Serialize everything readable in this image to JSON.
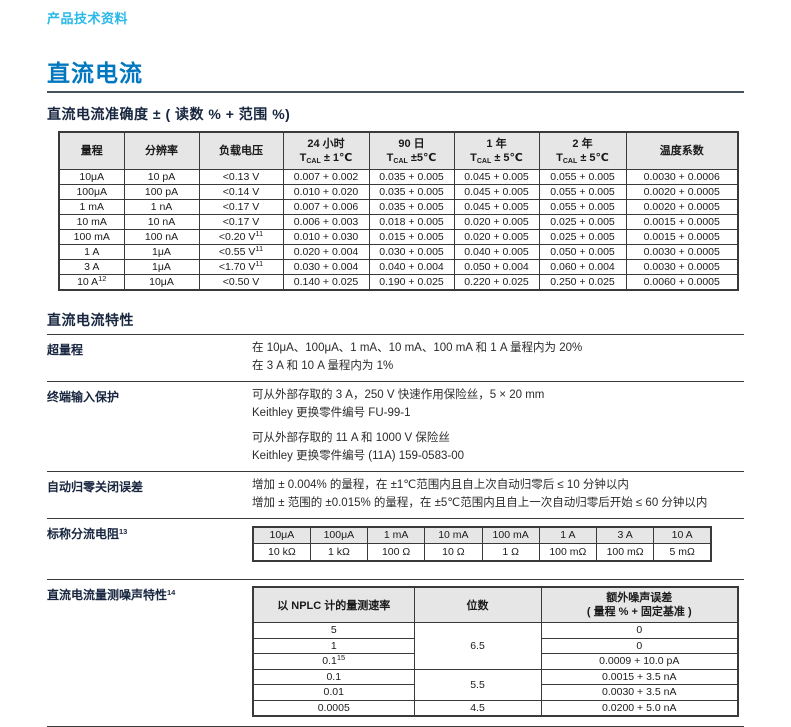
{
  "page": {
    "header_link": "产品技术资料",
    "title": "直流电流"
  },
  "accuracy": {
    "heading": "直流电流准确度 ± ( 读数 % + 范围 %)",
    "table": {
      "columns": [
        {
          "l1": "量程"
        },
        {
          "l1": "分辨率"
        },
        {
          "l1": "负载电压"
        },
        {
          "l1": "24 小时",
          "l2": "T~CAL~ ± 1℃"
        },
        {
          "l1": "90 日",
          "l2": "T~CAL~ ±5℃"
        },
        {
          "l1": "1 年",
          "l2": "T~CAL~ ± 5℃"
        },
        {
          "l1": "2 年",
          "l2": "T~CAL~ ± 5℃"
        },
        {
          "l1": "温度系数"
        }
      ],
      "rows": [
        [
          "10μA",
          "10 pA",
          "<0.13 V",
          "0.007 + 0.002",
          "0.035 + 0.005",
          "0.045 + 0.005",
          "0.055 + 0.005",
          "0.0030 + 0.0006"
        ],
        [
          "100μA",
          "100 pA",
          "<0.14 V",
          "0.010 + 0.020",
          "0.035 + 0.005",
          "0.045 + 0.005",
          "0.055 + 0.005",
          "0.0020 + 0.0005"
        ],
        [
          "1 mA",
          "1 nA",
          "<0.17 V",
          "0.007 + 0.006",
          "0.035 + 0.005",
          "0.045 + 0.005",
          "0.055 + 0.005",
          "0.0020 + 0.0005"
        ],
        [
          "10 mA",
          "10 nA",
          "<0.17 V",
          "0.006 + 0.003",
          "0.018 + 0.005",
          "0.020 + 0.005",
          "0.025 + 0.005",
          "0.0015 + 0.0005"
        ],
        [
          "100 mA",
          "100 nA",
          "<0.20 V^11^",
          "0.010 + 0.030",
          "0.015 + 0.005",
          "0.020 + 0.005",
          "0.025 + 0.005",
          "0.0015 + 0.0005"
        ],
        [
          "1 A",
          "1μA",
          "<0.55 V^11^",
          "0.020 + 0.004",
          "0.030 + 0.005",
          "0.040 + 0.005",
          "0.050 + 0.005",
          "0.0030 + 0.0005"
        ],
        [
          "3 A",
          "1μA",
          "<1.70 V^11^",
          "0.030 + 0.004",
          "0.040 + 0.004",
          "0.050 + 0.004",
          "0.060 + 0.004",
          "0.0030 + 0.0005"
        ],
        [
          "10 A^12^",
          "10μA",
          "<0.50 V",
          "0.140 + 0.025",
          "0.190 + 0.025",
          "0.220 + 0.025",
          "0.250 + 0.025",
          "0.0060 + 0.0005"
        ]
      ]
    }
  },
  "characteristics": {
    "heading": "直流电流特性",
    "overrange": {
      "label": "超量程",
      "lines": [
        "在 10μA、100μA、1 mA、10 mA、100 mA 和 1 A 量程内为 20%",
        "在 3 A 和 10 A 量程内为 1%"
      ]
    },
    "input_protection": {
      "label": "终端输入保护",
      "groups": [
        [
          "可从外部存取的 3 A，250 V 快速作用保险丝，5 × 20 mm",
          "Keithley 更换零件编号 FU-99-1"
        ],
        [
          "可从外部存取的 11 A 和 1000 V 保险丝",
          "Keithley 更换零件编号 (11A) 159-0583-00"
        ]
      ]
    },
    "autozero": {
      "label": "自动归零关闭误差",
      "lines": [
        "增加 ± 0.004% 的量程，在 ±1℃范围内且自上次自动归零后 ≤ 10 分钟以内",
        "增加 ± 范围的 ±0.015% 的量程，在 ±5℃范围内且自上一次自动归零后开始 ≤ 60 分钟以内"
      ]
    },
    "shunt": {
      "label": "标称分流电阻^13^",
      "ranges": [
        "10μA",
        "100μA",
        "1 mA",
        "10 mA",
        "100 mA",
        "1 A",
        "3 A",
        "10 A"
      ],
      "resistances": [
        "10 kΩ",
        "1 kΩ",
        "100 Ω",
        "10 Ω",
        "1 Ω",
        "100 mΩ",
        "100 mΩ",
        "5 mΩ"
      ]
    },
    "noise": {
      "label": "直流电流量测噪声特性^14^",
      "headers": {
        "rate": "以 NPLC 计的量测速率",
        "digits": "位数",
        "err1": "额外噪声误差",
        "err2": "( 量程 % + 固定基准 )"
      },
      "rows": [
        {
          "rate": "5",
          "digits": "6.5",
          "span": 3,
          "noise": "0"
        },
        {
          "rate": "1",
          "noise": "0"
        },
        {
          "rate": "0.1^15^",
          "noise": "0.0009 + 10.0 pA"
        },
        {
          "rate": "0.1",
          "digits": "5.5",
          "span": 2,
          "noise": "0.0015 + 3.5 nA"
        },
        {
          "rate": "0.01",
          "noise": "0.0030 + 3.5 nA"
        },
        {
          "rate": "0.0005",
          "digits": "4.5",
          "span": 1,
          "noise": "0.0200 + 5.0 nA"
        }
      ]
    }
  }
}
